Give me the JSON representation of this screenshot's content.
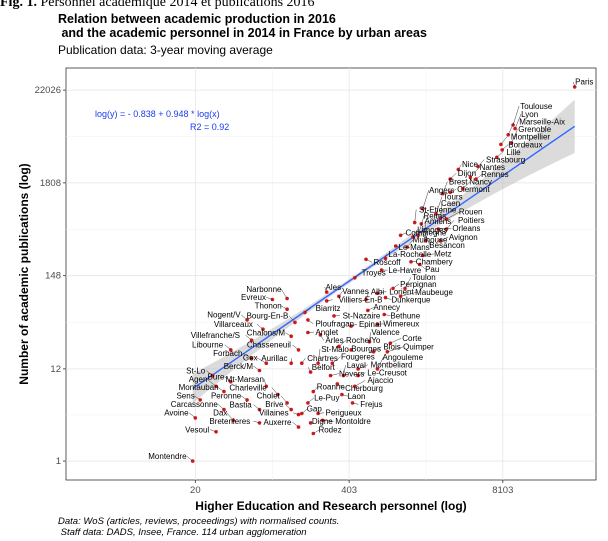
{
  "figure_label": {
    "prefix": "Fig. 1.",
    "text": "Personnel académique 2014 et publications 2016"
  },
  "chart_data": {
    "type": "scatter",
    "title": "Relation between academic production in 2016\n and the academic personnel in 2014 in France by urban areas",
    "subtitle": "Publication data: 3-year moving average",
    "xlabel": "Higher Education and Research personnel (log)",
    "ylabel": "Number of academic publications (log)",
    "x_scale": "log",
    "y_scale": "log",
    "xlim": [
      1.6,
      50000
    ],
    "ylim": [
      0.6,
      40000
    ],
    "x_ticks": [
      20,
      403,
      8103
    ],
    "x_tick_labels": [
      "20",
      "403",
      "8103"
    ],
    "y_ticks": [
      1,
      12,
      148,
      1808,
      22026
    ],
    "y_tick_labels": [
      "1",
      "12",
      "148",
      "1808",
      "22026"
    ],
    "grid": true,
    "legend": "none",
    "point_color": "#d7191c",
    "fit_color": "#3366ff",
    "band_color": "#bdbdbd",
    "regression": {
      "intercept": -0.838,
      "slope": 0.948,
      "equation": "log(y) = - 0.838 + 0.948 * log(x)",
      "r2": "R2 = 0.92"
    },
    "caption": "Data: WoS (articles, reviews, proceedings) with normalised counts.\n Staff data: DADS, Insee, France. 114 urban agglomeration",
    "points": [
      {
        "name": "Paris",
        "x": 33000,
        "y": 24000
      },
      {
        "name": "Lyon",
        "x": 10300,
        "y": 7800
      },
      {
        "name": "Toulouse",
        "x": 9900,
        "y": 8600
      },
      {
        "name": "Marseille-Aix",
        "x": 9000,
        "y": 6600
      },
      {
        "name": "Grenoble",
        "x": 9600,
        "y": 5300
      },
      {
        "name": "Montpellier",
        "x": 7800,
        "y": 5100
      },
      {
        "name": "Bordeaux",
        "x": 8000,
        "y": 4400
      },
      {
        "name": "Lille",
        "x": 7200,
        "y": 3600
      },
      {
        "name": "Nice",
        "x": 3400,
        "y": 2600
      },
      {
        "name": "Strasbourg",
        "x": 5000,
        "y": 2800
      },
      {
        "name": "Nantes",
        "x": 4300,
        "y": 2100
      },
      {
        "name": "Dijon",
        "x": 2900,
        "y": 2000
      },
      {
        "name": "Rennes",
        "x": 4800,
        "y": 2000
      },
      {
        "name": "Nancy",
        "x": 3700,
        "y": 1540
      },
      {
        "name": "Brest",
        "x": 2500,
        "y": 1350
      },
      {
        "name": "Clermont",
        "x": 2900,
        "y": 1400
      },
      {
        "name": "Angers",
        "x": 1700,
        "y": 900
      },
      {
        "name": "Tours",
        "x": 2200,
        "y": 780
      },
      {
        "name": "Caen",
        "x": 2400,
        "y": 700
      },
      {
        "name": "Rouen",
        "x": 2700,
        "y": 680
      },
      {
        "name": "Besancon",
        "x": 1650,
        "y": 600
      },
      {
        "name": "St-Etienne",
        "x": 1450,
        "y": 620
      },
      {
        "name": "Orleans",
        "x": 2300,
        "y": 520
      },
      {
        "name": "Poitiers",
        "x": 2700,
        "y": 520
      },
      {
        "name": "Reims",
        "x": 1550,
        "y": 440
      },
      {
        "name": "Compiegne",
        "x": 1100,
        "y": 440
      },
      {
        "name": "Limoges",
        "x": 1400,
        "y": 420
      },
      {
        "name": "Amiens",
        "x": 1800,
        "y": 380
      },
      {
        "name": "Avignon",
        "x": 2400,
        "y": 380
      },
      {
        "name": "Le-Mans",
        "x": 1000,
        "y": 330
      },
      {
        "name": "Mulhouse",
        "x": 1250,
        "y": 320
      },
      {
        "name": "Metz",
        "x": 1700,
        "y": 255
      },
      {
        "name": "Roscoff",
        "x": 560,
        "y": 230
      },
      {
        "name": "La-Rochelle",
        "x": 820,
        "y": 235
      },
      {
        "name": "Chambery",
        "x": 1350,
        "y": 215
      },
      {
        "name": "Pau",
        "x": 1600,
        "y": 200
      },
      {
        "name": "Le-Havre",
        "x": 760,
        "y": 172
      },
      {
        "name": "Troyes",
        "x": 450,
        "y": 140
      },
      {
        "name": "Perpignan",
        "x": 950,
        "y": 105
      },
      {
        "name": "Toulon",
        "x": 1200,
        "y": 105
      },
      {
        "name": "Lorient",
        "x": 700,
        "y": 92
      },
      {
        "name": "Maubeuge",
        "x": 1100,
        "y": 85
      },
      {
        "name": "Dunkerque",
        "x": 820,
        "y": 82
      },
      {
        "name": "Albi",
        "x": 560,
        "y": 78
      },
      {
        "name": "Ales",
        "x": 260,
        "y": 95
      },
      {
        "name": "Vannes",
        "x": 330,
        "y": 85
      },
      {
        "name": "Narbonne",
        "x": 120,
        "y": 80
      },
      {
        "name": "Evreux",
        "x": 90,
        "y": 78
      },
      {
        "name": "Villiers-En-B",
        "x": 260,
        "y": 75
      },
      {
        "name": "St-Nazaire",
        "x": 300,
        "y": 50
      },
      {
        "name": "Annecy",
        "x": 580,
        "y": 58
      },
      {
        "name": "Bethune",
        "x": 800,
        "y": 52
      },
      {
        "name": "Thonon",
        "x": 120,
        "y": 60
      },
      {
        "name": "Biarritz",
        "x": 170,
        "y": 55
      },
      {
        "name": "Ploufragan",
        "x": 180,
        "y": 45
      },
      {
        "name": "Wimereux",
        "x": 700,
        "y": 40
      },
      {
        "name": "Nogent/V",
        "x": 55,
        "y": 45
      },
      {
        "name": "Bourg-En-B",
        "x": 140,
        "y": 42
      },
      {
        "name": "Epinal",
        "x": 420,
        "y": 38
      },
      {
        "name": "Villarceaux",
        "x": 75,
        "y": 35
      },
      {
        "name": "Arles",
        "x": 230,
        "y": 30
      },
      {
        "name": "Anglet",
        "x": 180,
        "y": 32
      },
      {
        "name": "Chalons/M",
        "x": 130,
        "y": 29
      },
      {
        "name": "Villefranche/S",
        "x": 60,
        "y": 26
      },
      {
        "name": "Valence",
        "x": 600,
        "y": 25
      },
      {
        "name": "Corte",
        "x": 900,
        "y": 24
      },
      {
        "name": "Roche/Yo",
        "x": 330,
        "y": 22
      },
      {
        "name": "Bourges",
        "x": 420,
        "y": 20
      },
      {
        "name": "Blois",
        "x": 650,
        "y": 19
      },
      {
        "name": "Quimper",
        "x": 850,
        "y": 19
      },
      {
        "name": "Chasseneuil",
        "x": 150,
        "y": 20
      },
      {
        "name": "Libourne",
        "x": 40,
        "y": 20
      },
      {
        "name": "Forbach",
        "x": 60,
        "y": 16
      },
      {
        "name": "Gex",
        "x": 80,
        "y": 14
      },
      {
        "name": "Aurillac",
        "x": 130,
        "y": 14
      },
      {
        "name": "Chartres",
        "x": 160,
        "y": 14
      },
      {
        "name": "St-Malo",
        "x": 220,
        "y": 14
      },
      {
        "name": "Fougeres",
        "x": 290,
        "y": 14
      },
      {
        "name": "Montbeliard",
        "x": 480,
        "y": 12
      },
      {
        "name": "Angouleme",
        "x": 700,
        "y": 12
      },
      {
        "name": "Berck/M",
        "x": 70,
        "y": 11.5
      },
      {
        "name": "St-Lo",
        "x": 28,
        "y": 10
      },
      {
        "name": "Belfort",
        "x": 190,
        "y": 11
      },
      {
        "name": "Nevers",
        "x": 280,
        "y": 10
      },
      {
        "name": "Laval",
        "x": 360,
        "y": 10
      },
      {
        "name": "Le-Creusot",
        "x": 480,
        "y": 10
      },
      {
        "name": "Bure",
        "x": 40,
        "y": 8.5
      },
      {
        "name": "Agen",
        "x": 30,
        "y": 7.5
      },
      {
        "name": "Mt-Marsan",
        "x": 80,
        "y": 7.5
      },
      {
        "name": "Cherbourg",
        "x": 320,
        "y": 8
      },
      {
        "name": "Ajaccio",
        "x": 450,
        "y": 7.5
      },
      {
        "name": "Montauban",
        "x": 35,
        "y": 6.5
      },
      {
        "name": "Charleville",
        "x": 100,
        "y": 6
      },
      {
        "name": "Roanne",
        "x": 200,
        "y": 6.5
      },
      {
        "name": "Laon",
        "x": 350,
        "y": 6
      },
      {
        "name": "Sens",
        "x": 22,
        "y": 5.2
      },
      {
        "name": "Peronne",
        "x": 55,
        "y": 5.2
      },
      {
        "name": "Cholet",
        "x": 120,
        "y": 4.8
      },
      {
        "name": "Le-Puy",
        "x": 180,
        "y": 4.8
      },
      {
        "name": "Frejus",
        "x": 430,
        "y": 4.8
      },
      {
        "name": "Carcassonne",
        "x": 35,
        "y": 4
      },
      {
        "name": "Bastia",
        "x": 70,
        "y": 4
      },
      {
        "name": "Brive",
        "x": 130,
        "y": 4
      },
      {
        "name": "Gap",
        "x": 160,
        "y": 3.6
      },
      {
        "name": "Perigueux",
        "x": 220,
        "y": 3.6
      },
      {
        "name": "Villaines",
        "x": 150,
        "y": 3.5
      },
      {
        "name": "Avoine",
        "x": 20,
        "y": 3.2
      },
      {
        "name": "Dax",
        "x": 42,
        "y": 3
      },
      {
        "name": "Montoldre",
        "x": 240,
        "y": 3
      },
      {
        "name": "Bretenieres",
        "x": 70,
        "y": 2.8
      },
      {
        "name": "Digne",
        "x": 190,
        "y": 2.8
      },
      {
        "name": "Auxerre",
        "x": 150,
        "y": 2.5
      },
      {
        "name": "Vesoul",
        "x": 30,
        "y": 2.2
      },
      {
        "name": "Rodez",
        "x": 200,
        "y": 2.1
      },
      {
        "name": "Montendre",
        "x": 19,
        "y": 1
      }
    ]
  }
}
